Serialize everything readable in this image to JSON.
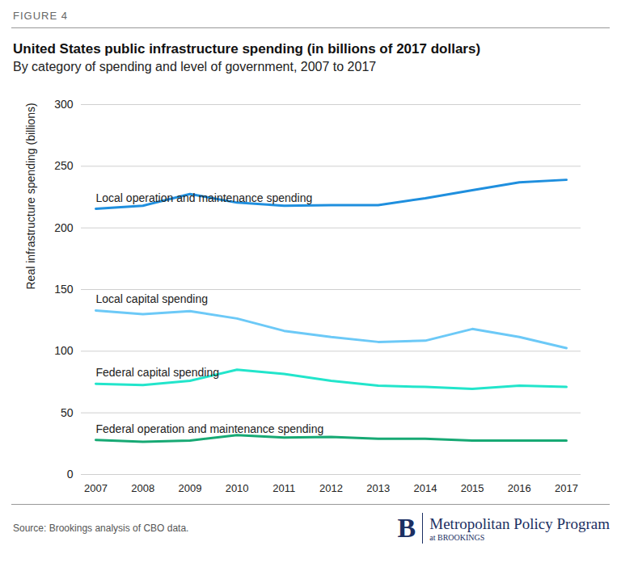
{
  "chart_data": {
    "type": "line",
    "figure_label": "FIGURE 4",
    "title": "United States public infrastructure spending (in billions of 2017 dollars)",
    "subtitle": "By category of spending and level of government, 2007 to 2017",
    "y_label": "Real infrastructure spending (billions)",
    "source": "Source: Brookings analysis of CBO data.",
    "branding": [
      "B",
      "Metropolitan Policy Program",
      "at BROOKINGS"
    ],
    "x": [
      2007,
      2008,
      2009,
      2010,
      2011,
      2012,
      2013,
      2014,
      2015,
      2016,
      2017
    ],
    "xlim": [
      2007,
      2017
    ],
    "xticks": [
      2007,
      2008,
      2009,
      2010,
      2011,
      2012,
      2013,
      2014,
      2015,
      2016,
      2017
    ],
    "ylim": [
      0,
      300
    ],
    "yticks": [
      0,
      50,
      100,
      150,
      200,
      250,
      300
    ],
    "grid": true,
    "series": [
      {
        "name": "Local operation and maintenance spending",
        "color": "#1f8fde",
        "values": [
          215.5,
          218,
          227.5,
          220.5,
          218,
          218.5,
          218.5,
          224,
          230.5,
          237,
          239
        ]
      },
      {
        "name": "Local capital spending",
        "color": "#6cc9f7",
        "values": [
          133,
          130,
          132.5,
          126.5,
          116.5,
          111.5,
          107.5,
          108.5,
          118,
          111.5,
          102.5
        ]
      },
      {
        "name": "Federal capital spending",
        "color": "#22e5cb",
        "values": [
          73.5,
          72.5,
          76,
          85,
          81.5,
          76,
          72,
          71,
          69.5,
          72,
          71
        ]
      },
      {
        "name": "Federal operation and maintenance spending",
        "color": "#17a974",
        "values": [
          28,
          26.5,
          27.5,
          32,
          30,
          30.5,
          29,
          29,
          27.5,
          27.5,
          27.5
        ]
      }
    ]
  }
}
